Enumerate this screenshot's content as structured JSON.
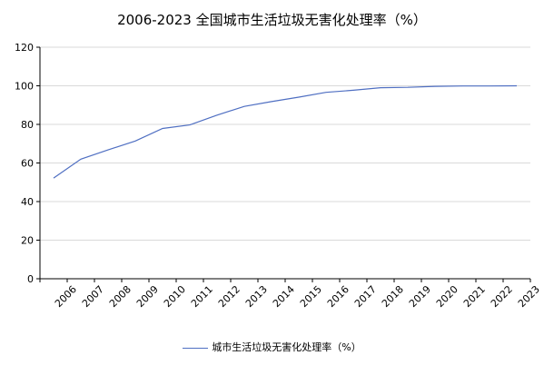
{
  "chart_data": {
    "type": "line",
    "title": "2006-2023   全国城市生活垃圾无害化处理率（%）",
    "x": [
      "2006",
      "2007",
      "2008",
      "2009",
      "2010",
      "2011",
      "2012",
      "2013",
      "2014",
      "2015",
      "2016",
      "2017",
      "2018",
      "2019",
      "2020",
      "2021",
      "2022",
      "2023"
    ],
    "series": [
      {
        "name": "城市生活垃圾无害化处理率（%）",
        "values": [
          52.2,
          62.0,
          66.8,
          71.4,
          77.9,
          79.7,
          84.8,
          89.3,
          91.8,
          94.1,
          96.6,
          97.7,
          99.0,
          99.2,
          99.7,
          99.9,
          99.9,
          100.0
        ],
        "color": "#4f6fc2"
      }
    ],
    "ylim": [
      0,
      120
    ],
    "yticks": [
      0,
      20,
      40,
      60,
      80,
      100,
      120
    ],
    "grid": true,
    "legend_position": "bottom"
  }
}
